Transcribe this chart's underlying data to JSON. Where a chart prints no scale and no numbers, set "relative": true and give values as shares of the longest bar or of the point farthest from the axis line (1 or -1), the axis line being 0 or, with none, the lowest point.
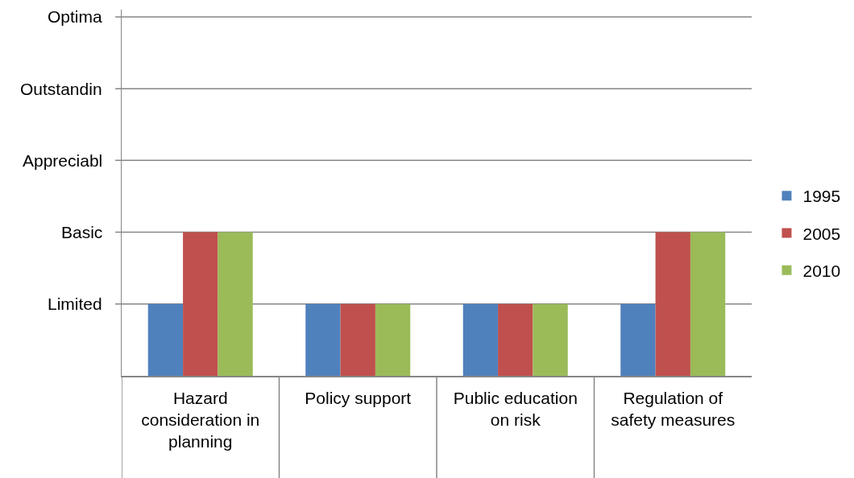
{
  "chart_data": {
    "type": "bar",
    "relative": true,
    "categories": [
      "Hazard consideration in planning",
      "Policy support",
      "Public education on risk",
      "Regulation of safety measures"
    ],
    "series": [
      {
        "name": "1995",
        "color": "#4f81bd",
        "values": [
          0.5,
          0.5,
          0.5,
          0.5
        ]
      },
      {
        "name": "2005",
        "color": "#c0504d",
        "values": [
          1,
          0.5,
          0.5,
          1
        ]
      },
      {
        "name": "2010",
        "color": "#9bbb59",
        "values": [
          1,
          0.5,
          0.5,
          1
        ]
      }
    ],
    "ylim": [
      0,
      2.55
    ],
    "ref_lines": [
      {
        "axis": "y",
        "value": 0.5,
        "label": "Limited",
        "color": "#868686"
      },
      {
        "axis": "y",
        "value": 1,
        "label": "Basic",
        "color": "#868686"
      },
      {
        "axis": "y",
        "value": 1.5,
        "label": "Appreciabl",
        "color": "#868686"
      },
      {
        "axis": "y",
        "value": 2,
        "label": "Outstandin",
        "color": "#868686"
      },
      {
        "axis": "y",
        "value": 2.5,
        "label": "Optima",
        "color": "#868686"
      }
    ],
    "legend": "right"
  }
}
